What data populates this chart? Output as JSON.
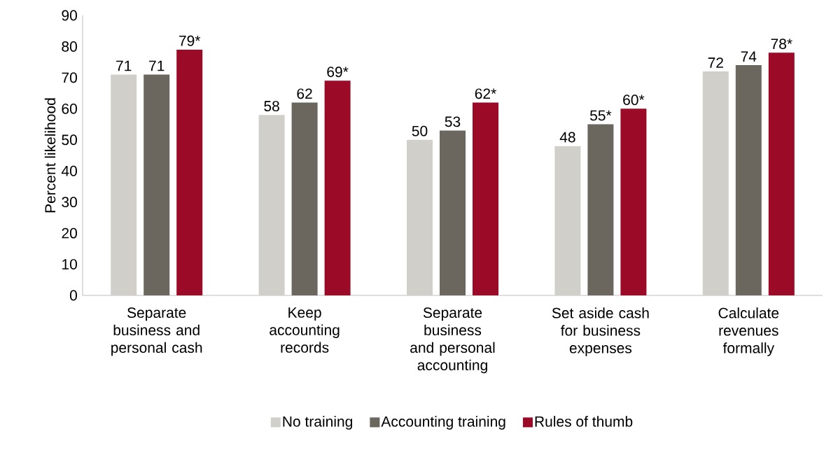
{
  "chart_data": {
    "type": "bar",
    "ylabel": "Percent likelihood",
    "categories": [
      "Separate business and personal cash",
      "Keep accounting records",
      "Separate business and personal accounting",
      "Set aside cash for business expenses",
      "Calculate revenues formally"
    ],
    "series": [
      {
        "name": "No training",
        "color": "#d0cfca",
        "values": [
          71,
          58,
          50,
          48,
          72
        ],
        "value_labels": [
          "71",
          "58",
          "50",
          "48",
          "72"
        ]
      },
      {
        "name": "Accounting training",
        "color": "#6b665e",
        "values": [
          71,
          62,
          53,
          55,
          74
        ],
        "value_labels": [
          "71",
          "62",
          "53",
          "55*",
          "74"
        ]
      },
      {
        "name": "Rules of thumb",
        "color": "#9b0a26",
        "values": [
          79,
          69,
          62,
          60,
          78
        ],
        "value_labels": [
          "79*",
          "69*",
          "62*",
          "60*",
          "78*"
        ]
      }
    ],
    "ylim": [
      0,
      90
    ],
    "yticks": [
      0,
      10,
      20,
      30,
      40,
      50,
      60,
      70,
      80,
      90
    ],
    "grid": false,
    "legend": "bottom"
  }
}
